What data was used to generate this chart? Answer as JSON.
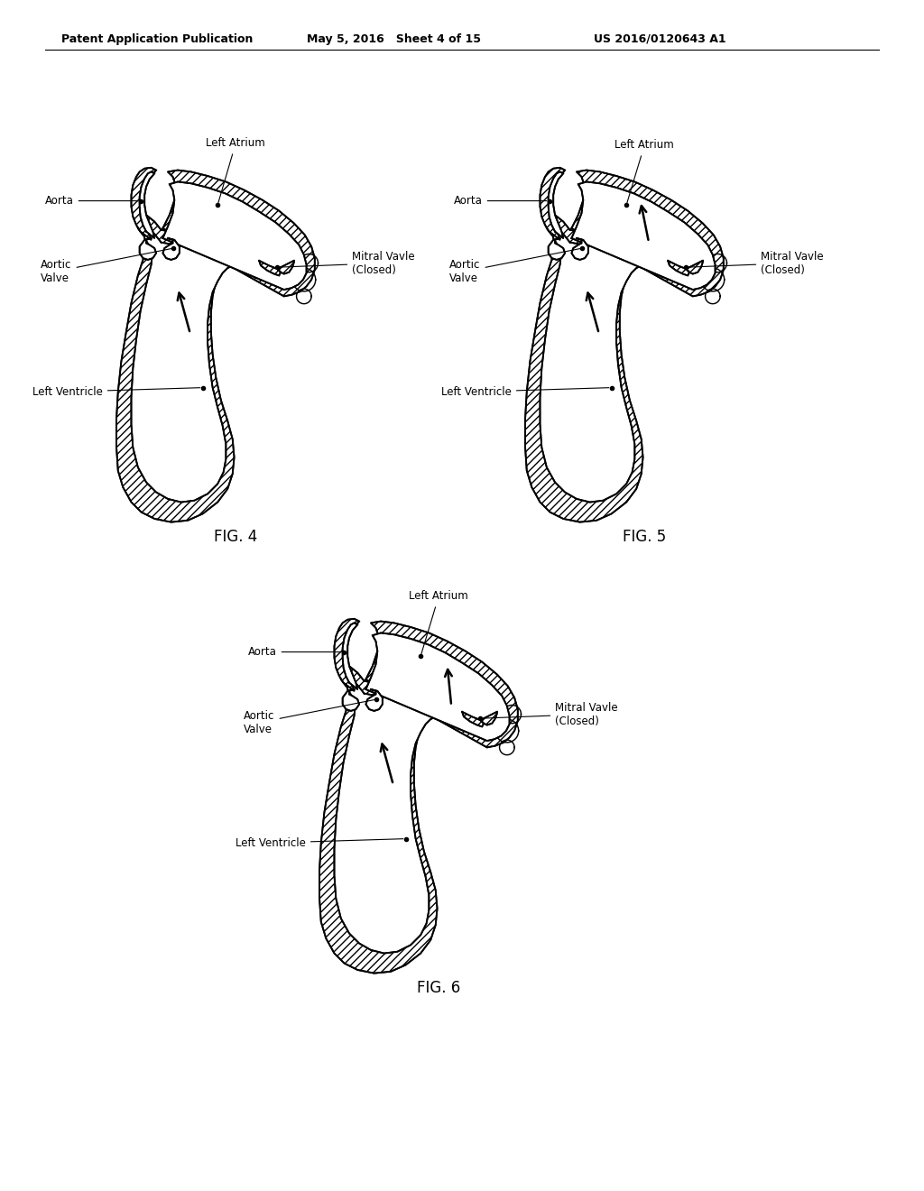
{
  "header_left": "Patent Application Publication",
  "header_mid": "May 5, 2016   Sheet 4 of 15",
  "header_right": "US 2016/0120643 A1",
  "fig4_label": "FIG. 4",
  "fig5_label": "FIG. 5",
  "fig6_label": "FIG. 6",
  "background": "#ffffff",
  "line_color": "#000000",
  "labels": {
    "left_atrium": "Left Atrium",
    "aorta": "Aorta",
    "mitral_valve": "Mitral Vavle\n(Closed)",
    "aortic_valve": "Aortic\nValve",
    "left_ventricle": "Left Ventricle"
  },
  "font_size_header": 9,
  "font_size_label": 8.5,
  "font_size_fig": 12
}
